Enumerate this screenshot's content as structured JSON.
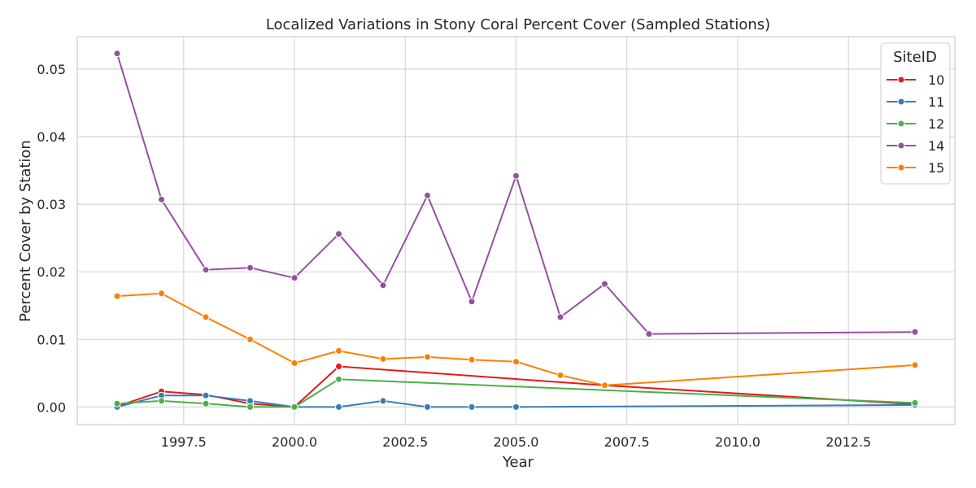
{
  "chart_data": {
    "type": "line",
    "title": "Localized Variations in Stony Coral Percent Cover (Sampled Stations)",
    "xlabel": "Year",
    "ylabel": "Percent Cover by Station",
    "xlim": [
      1995.1,
      2014.9
    ],
    "ylim": [
      -0.0026,
      0.0548
    ],
    "x_ticks": [
      1997.5,
      2000.0,
      2002.5,
      2005.0,
      2007.5,
      2010.0,
      2012.5
    ],
    "x_tick_labels": [
      "1997.5",
      "2000.0",
      "2002.5",
      "2005.0",
      "2007.5",
      "2010.0",
      "2012.5"
    ],
    "y_ticks": [
      0.0,
      0.01,
      0.02,
      0.03,
      0.04,
      0.05
    ],
    "y_tick_labels": [
      "0.00",
      "0.01",
      "0.02",
      "0.03",
      "0.04",
      "0.05"
    ],
    "grid": true,
    "legend": {
      "title": "SiteID",
      "placement": "top-right"
    },
    "series": [
      {
        "name": "10",
        "color": "#e41a1c",
        "x": [
          1996,
          1997,
          1998,
          1999,
          2000,
          2001,
          2007,
          2014
        ],
        "y": [
          0.0001,
          0.0023,
          0.0018,
          0.0005,
          0.0,
          0.006,
          0.0032,
          0.0004
        ]
      },
      {
        "name": "11",
        "color": "#377eb8",
        "x": [
          1996,
          1997,
          1998,
          1999,
          2000,
          2001,
          2002,
          2003,
          2004,
          2005,
          2014
        ],
        "y": [
          0.0,
          0.0017,
          0.0017,
          0.0009,
          0.0,
          0.0,
          0.0009,
          0.0,
          0.0,
          0.0,
          0.0003
        ]
      },
      {
        "name": "12",
        "color": "#4daf4a",
        "x": [
          1996,
          1997,
          1998,
          1999,
          2000,
          2001,
          2014
        ],
        "y": [
          0.0005,
          0.0009,
          0.0005,
          0.0,
          0.0,
          0.0041,
          0.0006
        ]
      },
      {
        "name": "14",
        "color": "#984ea3",
        "x": [
          1996,
          1997,
          1998,
          1999,
          2000,
          2001,
          2002,
          2003,
          2004,
          2005,
          2006,
          2007,
          2008,
          2014
        ],
        "y": [
          0.0523,
          0.0307,
          0.0203,
          0.0206,
          0.0191,
          0.0256,
          0.018,
          0.0313,
          0.0156,
          0.0342,
          0.0133,
          0.0182,
          0.0108,
          0.0111
        ]
      },
      {
        "name": "15",
        "color": "#ff7f00",
        "x": [
          1996,
          1997,
          1998,
          1999,
          2000,
          2001,
          2002,
          2003,
          2004,
          2005,
          2006,
          2007,
          2014
        ],
        "y": [
          0.0164,
          0.0168,
          0.0133,
          0.01,
          0.0065,
          0.0083,
          0.0071,
          0.0074,
          0.007,
          0.0067,
          0.0047,
          0.0032,
          0.0062
        ]
      }
    ]
  }
}
